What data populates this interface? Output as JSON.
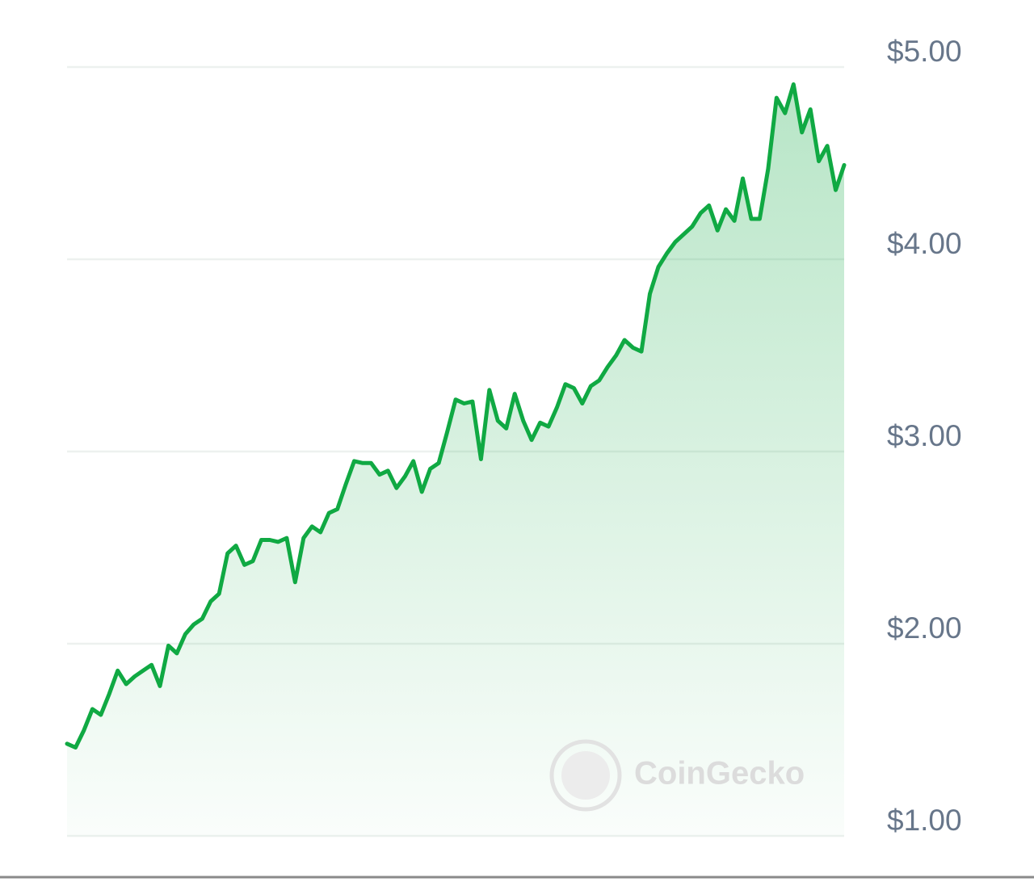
{
  "chart_data": {
    "type": "line",
    "values": [
      1.48,
      1.46,
      1.55,
      1.66,
      1.63,
      1.74,
      1.86,
      1.79,
      1.83,
      1.86,
      1.89,
      1.78,
      1.99,
      1.95,
      2.05,
      2.1,
      2.13,
      2.22,
      2.26,
      2.47,
      2.51,
      2.41,
      2.43,
      2.54,
      2.54,
      2.53,
      2.55,
      2.32,
      2.55,
      2.61,
      2.58,
      2.68,
      2.7,
      2.83,
      2.95,
      2.94,
      2.94,
      2.88,
      2.9,
      2.81,
      2.87,
      2.95,
      2.79,
      2.91,
      2.94,
      3.1,
      3.27,
      3.25,
      3.26,
      2.96,
      3.32,
      3.16,
      3.12,
      3.3,
      3.16,
      3.06,
      3.15,
      3.13,
      3.23,
      3.35,
      3.33,
      3.25,
      3.34,
      3.37,
      3.44,
      3.5,
      3.58,
      3.54,
      3.52,
      3.82,
      3.96,
      4.03,
      4.09,
      4.13,
      4.17,
      4.24,
      4.28,
      4.15,
      4.26,
      4.2,
      4.42,
      4.21,
      4.21,
      4.47,
      4.84,
      4.76,
      4.91,
      4.66,
      4.78,
      4.51,
      4.59,
      4.36,
      4.49
    ],
    "color": "#10a943",
    "ylim": [
      1,
      5
    ],
    "yticks": [
      {
        "value": 1,
        "label": "$1.00"
      },
      {
        "value": 2,
        "label": "$2.00"
      },
      {
        "value": 3,
        "label": "$3.00"
      },
      {
        "value": 4,
        "label": "$4.00"
      },
      {
        "value": 5,
        "label": "$5.00"
      }
    ],
    "grid": true,
    "watermark": "CoinGecko"
  }
}
